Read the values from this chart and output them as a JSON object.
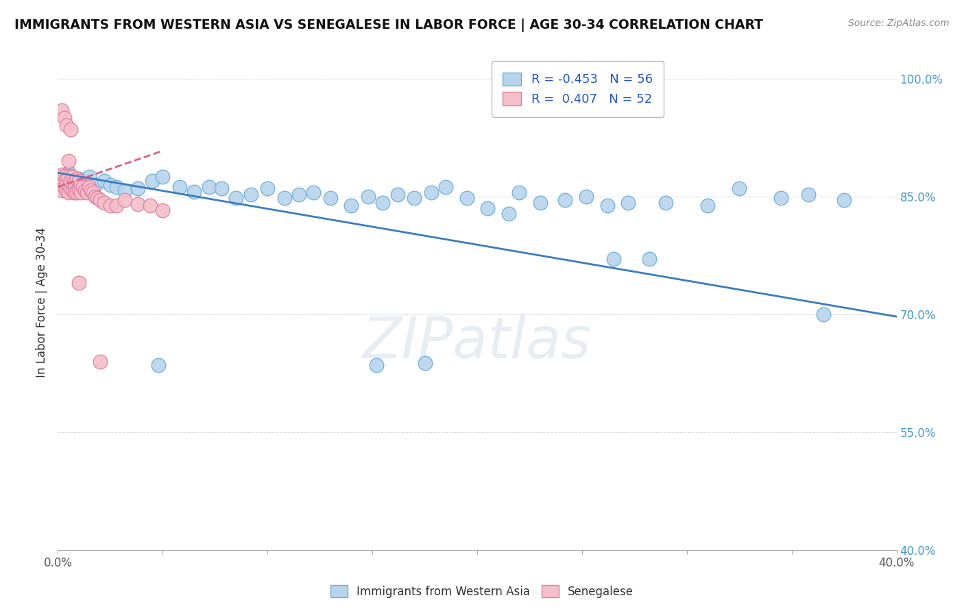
{
  "title": "IMMIGRANTS FROM WESTERN ASIA VS SENEGALESE IN LABOR FORCE | AGE 30-34 CORRELATION CHART",
  "source": "Source: ZipAtlas.com",
  "ylabel": "In Labor Force | Age 30-34",
  "xlim": [
    0.0,
    0.4
  ],
  "ylim": [
    0.4,
    1.03
  ],
  "xticks": [
    0.0,
    0.05,
    0.1,
    0.15,
    0.2,
    0.25,
    0.3,
    0.35,
    0.4
  ],
  "yticks": [
    0.4,
    0.55,
    0.7,
    0.85,
    1.0
  ],
  "ytick_labels": [
    "40.0%",
    "55.0%",
    "70.0%",
    "85.0%",
    "100.0%"
  ],
  "blue_color": "#b8d4ed",
  "blue_edge_color": "#6baed6",
  "pink_color": "#f4bfca",
  "pink_edge_color": "#de7fa0",
  "trend_blue": "#3a7bbf",
  "trend_pink": "#d96080",
  "trend_pink_dashed": true,
  "legend_R_blue": "-0.453",
  "legend_N_blue": "56",
  "legend_R_pink": "0.407",
  "legend_N_pink": "52",
  "watermark": "ZIPatlas",
  "blue_scatter_x": [
    0.003,
    0.004,
    0.005,
    0.006,
    0.007,
    0.008,
    0.01,
    0.012,
    0.015,
    0.018,
    0.022,
    0.025,
    0.028,
    0.032,
    0.038,
    0.045,
    0.05,
    0.058,
    0.065,
    0.072,
    0.078,
    0.085,
    0.092,
    0.1,
    0.108,
    0.115,
    0.122,
    0.13,
    0.14,
    0.148,
    0.155,
    0.162,
    0.17,
    0.178,
    0.185,
    0.195,
    0.205,
    0.215,
    0.22,
    0.23,
    0.242,
    0.252,
    0.262,
    0.272,
    0.29,
    0.31,
    0.325,
    0.345,
    0.358,
    0.375,
    0.152,
    0.175,
    0.265,
    0.365,
    0.282,
    0.048
  ],
  "blue_scatter_y": [
    0.875,
    0.878,
    0.88,
    0.876,
    0.872,
    0.868,
    0.872,
    0.87,
    0.875,
    0.865,
    0.87,
    0.865,
    0.862,
    0.858,
    0.86,
    0.87,
    0.875,
    0.862,
    0.856,
    0.862,
    0.86,
    0.848,
    0.852,
    0.86,
    0.848,
    0.852,
    0.855,
    0.848,
    0.838,
    0.85,
    0.842,
    0.852,
    0.848,
    0.855,
    0.862,
    0.848,
    0.835,
    0.828,
    0.855,
    0.842,
    0.845,
    0.85,
    0.838,
    0.842,
    0.842,
    0.838,
    0.86,
    0.848,
    0.852,
    0.845,
    0.635,
    0.638,
    0.77,
    0.7,
    0.77,
    0.635
  ],
  "pink_scatter_x": [
    0.001,
    0.001,
    0.002,
    0.002,
    0.002,
    0.002,
    0.003,
    0.003,
    0.003,
    0.004,
    0.004,
    0.004,
    0.005,
    0.005,
    0.005,
    0.006,
    0.006,
    0.007,
    0.007,
    0.007,
    0.008,
    0.008,
    0.008,
    0.009,
    0.009,
    0.01,
    0.01,
    0.011,
    0.011,
    0.012,
    0.013,
    0.014,
    0.015,
    0.016,
    0.017,
    0.018,
    0.019,
    0.02,
    0.022,
    0.025,
    0.028,
    0.032,
    0.038,
    0.044,
    0.05,
    0.002,
    0.003,
    0.004,
    0.005,
    0.006,
    0.01,
    0.02
  ],
  "pink_scatter_y": [
    0.875,
    0.872,
    0.878,
    0.87,
    0.865,
    0.858,
    0.876,
    0.868,
    0.862,
    0.872,
    0.865,
    0.858,
    0.875,
    0.862,
    0.855,
    0.87,
    0.86,
    0.875,
    0.865,
    0.858,
    0.87,
    0.862,
    0.855,
    0.872,
    0.855,
    0.87,
    0.858,
    0.865,
    0.855,
    0.862,
    0.858,
    0.855,
    0.862,
    0.858,
    0.855,
    0.85,
    0.848,
    0.845,
    0.842,
    0.838,
    0.838,
    0.845,
    0.84,
    0.838,
    0.832,
    0.96,
    0.95,
    0.94,
    0.895,
    0.935,
    0.74,
    0.64
  ],
  "blue_trend_x": [
    0.0,
    0.4
  ],
  "blue_trend_y": [
    0.88,
    0.697
  ],
  "pink_trend_x": [
    0.0,
    0.05
  ],
  "pink_trend_y": [
    0.862,
    0.908
  ]
}
